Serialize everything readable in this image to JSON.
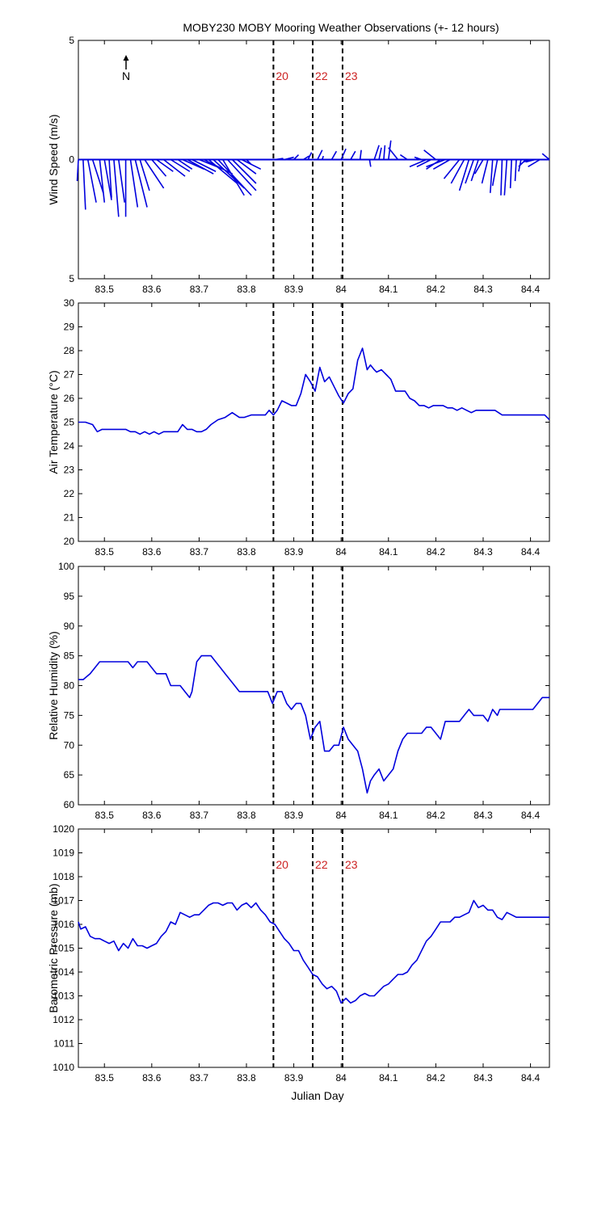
{
  "title": "MOBY230 MOBY Mooring Weather Observations (+- 12 hours)",
  "colors": {
    "series": "#0000dd",
    "marker_label": "#cc2222",
    "axis": "#000000",
    "background": "#ffffff"
  },
  "xlabel": "Julian Day",
  "x_ticks": [
    83.5,
    83.6,
    83.7,
    83.8,
    83.9,
    84,
    84.1,
    84.2,
    84.3,
    84.4
  ],
  "x_tick_labels": [
    "83.5",
    "83.6",
    "83.7",
    "83.8",
    "83.9",
    "84",
    "84.1",
    "84.2",
    "84.3",
    "84.4"
  ],
  "xlim": [
    83.445,
    84.44
  ],
  "markers": [
    {
      "x": 83.857,
      "label": "20"
    },
    {
      "x": 83.94,
      "label": "22"
    },
    {
      "x": 84.003,
      "label": "23"
    }
  ],
  "north_label": "N",
  "chart_data": [
    {
      "type": "line",
      "panel": "wind",
      "ylabel": "Wind Speed (m/s)",
      "ylim": [
        -5,
        5
      ],
      "y_ticks": [
        5,
        0,
        -5
      ],
      "y_tick_labels": [
        "5",
        "0",
        "5"
      ],
      "show_markers": true,
      "grid": false,
      "series": [
        {
          "x": [
            83.445,
            83.455,
            83.465,
            83.475,
            83.49,
            83.5,
            83.51,
            83.52,
            83.53,
            83.545,
            83.555,
            83.565,
            83.575,
            83.585,
            83.6,
            83.61,
            83.625,
            83.64,
            83.655,
            83.665,
            83.675,
            83.685,
            83.7,
            83.71,
            83.72,
            83.73,
            83.74,
            83.75,
            83.76,
            83.77,
            83.78,
            83.79,
            83.8,
            83.86,
            83.88,
            83.9,
            83.92,
            83.93,
            83.95,
            83.96,
            83.98,
            84,
            84.02,
            84.04,
            84.06,
            84.07,
            84.08,
            84.09,
            84.1,
            84.12,
            84.14,
            84.16,
            84.17,
            84.18,
            84.19,
            84.2,
            84.21,
            84.22,
            84.23,
            84.25,
            84.26,
            84.27,
            84.28,
            84.29,
            84.3,
            84.31,
            84.32,
            84.33,
            84.34,
            84.35,
            84.36,
            84.37,
            84.38,
            84.39,
            84.4,
            84.41,
            84.42,
            84.44
          ],
          "u": [
            -0.05,
            0.1,
            0.35,
            0.45,
            0.2,
            0.3,
            0.1,
            0.2,
            0.25,
            0,
            0.3,
            0.5,
            0.4,
            0.8,
            0.6,
            0.7,
            0.9,
            0.8,
            0.6,
            0.9,
            1.1,
            1.0,
            1.0,
            1.2,
            1.2,
            1.3,
            1.4,
            0.9,
            1.2,
            1.0,
            0.8,
            0.8,
            0.2,
            0.35,
            0.4,
            0.2,
            0.25,
            0.15,
            0.2,
            0.05,
            0.2,
            0.2,
            0.2,
            0.05,
            0.05,
            0.2,
            0.1,
            0.05,
            0.1,
            -0.4,
            -0.3,
            0,
            -0.3,
            -0.7,
            -0.6,
            -0.5,
            -0.6,
            -0.8,
            -0.7,
            -0.65,
            -0.55,
            -0.4,
            -0.35,
            -0.3,
            -0.35,
            -0.25,
            -0.1,
            -0.2,
            -0.05,
            -0.1,
            -0.05,
            -0.05,
            -0.1,
            -0.3,
            -0.3,
            -0.4,
            -0.5,
            -0.3
          ],
          "v": [
            -0.9,
            -2.1,
            -1.8,
            -1.4,
            -1.8,
            -1.7,
            -1.6,
            -2.4,
            -1.8,
            -2.4,
            -2.0,
            -2.0,
            -1.3,
            -1.2,
            -0.7,
            -0.5,
            -0.7,
            -0.5,
            -0.4,
            -0.4,
            -0.6,
            -0.5,
            -0.4,
            -0.6,
            -1.0,
            -1.2,
            -1.5,
            -1.5,
            -1.3,
            -1.0,
            -0.6,
            -0.4,
            -0.2,
            0.05,
            0.1,
            0.2,
            0.15,
            0.3,
            0.4,
            0.15,
            0.35,
            0.45,
            0.35,
            0.4,
            -0.3,
            0.6,
            0.5,
            0.6,
            0.8,
            0.5,
            0.2,
            0.1,
            0.1,
            -0.3,
            -0.3,
            0.4,
            -0.4,
            -0.3,
            -0.4,
            -0.8,
            -1.0,
            -1.3,
            -1.0,
            -0.9,
            -0.6,
            -1.0,
            -1.4,
            -1.1,
            -1.5,
            -1.5,
            -1.2,
            -0.9,
            -0.5,
            -0.3,
            -0.1,
            -0.1,
            -0.3,
            0.25
          ]
        }
      ]
    },
    {
      "type": "line",
      "panel": "temperature",
      "ylabel": "Air Temperature (°C)",
      "ylim": [
        20,
        30
      ],
      "y_ticks": [
        20,
        21,
        22,
        23,
        24,
        25,
        26,
        27,
        28,
        29,
        30
      ],
      "y_tick_labels": [
        "20",
        "21",
        "22",
        "23",
        "24",
        "25",
        "26",
        "27",
        "28",
        "29",
        "30"
      ],
      "show_markers": false,
      "grid": false,
      "series": [
        {
          "x": [
            83.445,
            83.46,
            83.475,
            83.485,
            83.495,
            83.51,
            83.53,
            83.545,
            83.555,
            83.565,
            83.575,
            83.585,
            83.595,
            83.605,
            83.615,
            83.625,
            83.635,
            83.645,
            83.655,
            83.665,
            83.675,
            83.685,
            83.695,
            83.705,
            83.715,
            83.725,
            83.74,
            83.755,
            83.77,
            83.785,
            83.795,
            83.81,
            83.825,
            83.84,
            83.848,
            83.857,
            83.865,
            83.875,
            83.885,
            83.895,
            83.905,
            83.915,
            83.925,
            83.935,
            83.945,
            83.955,
            83.965,
            83.975,
            83.985,
            83.995,
            84.005,
            84.015,
            84.025,
            84.035,
            84.045,
            84.055,
            84.062,
            84.07,
            84.075,
            84.085,
            84.095,
            84.105,
            84.115,
            84.125,
            84.135,
            84.145,
            84.155,
            84.165,
            84.175,
            84.185,
            84.195,
            84.205,
            84.215,
            84.225,
            84.235,
            84.245,
            84.255,
            84.265,
            84.275,
            84.285,
            84.295,
            84.305,
            84.315,
            84.325,
            84.34,
            84.355,
            84.37,
            84.385,
            84.4,
            84.415,
            84.43,
            84.44
          ],
          "y": [
            25.0,
            25.0,
            24.9,
            24.6,
            24.7,
            24.7,
            24.7,
            24.7,
            24.6,
            24.6,
            24.5,
            24.6,
            24.5,
            24.6,
            24.5,
            24.6,
            24.6,
            24.6,
            24.6,
            24.9,
            24.7,
            24.7,
            24.6,
            24.6,
            24.7,
            24.9,
            25.1,
            25.2,
            25.4,
            25.2,
            25.2,
            25.3,
            25.3,
            25.3,
            25.5,
            25.3,
            25.5,
            25.9,
            25.8,
            25.7,
            25.7,
            26.2,
            27.0,
            26.7,
            26.3,
            27.3,
            26.7,
            26.9,
            26.5,
            26.1,
            25.8,
            26.2,
            26.4,
            27.6,
            28.1,
            27.2,
            27.4,
            27.2,
            27.1,
            27.2,
            27.0,
            26.8,
            26.3,
            26.3,
            26.3,
            26.0,
            25.9,
            25.7,
            25.7,
            25.6,
            25.7,
            25.7,
            25.7,
            25.6,
            25.6,
            25.5,
            25.6,
            25.5,
            25.4,
            25.5,
            25.5,
            25.5,
            25.5,
            25.5,
            25.3,
            25.3,
            25.3,
            25.3,
            25.3,
            25.3,
            25.3,
            25.1
          ]
        }
      ]
    },
    {
      "type": "line",
      "panel": "humidity",
      "ylabel": "Relative Humidity (%)",
      "ylim": [
        60,
        100
      ],
      "y_ticks": [
        60,
        65,
        70,
        75,
        80,
        85,
        90,
        95,
        100
      ],
      "y_tick_labels": [
        "60",
        "65",
        "70",
        "75",
        "80",
        "85",
        "90",
        "95",
        "100"
      ],
      "show_markers": false,
      "grid": false,
      "series": [
        {
          "x": [
            83.445,
            83.455,
            83.47,
            83.48,
            83.49,
            83.5,
            83.51,
            83.52,
            83.53,
            83.54,
            83.55,
            83.56,
            83.57,
            83.58,
            83.59,
            83.6,
            83.61,
            83.62,
            83.63,
            83.64,
            83.65,
            83.66,
            83.67,
            83.68,
            83.685,
            83.695,
            83.705,
            83.715,
            83.725,
            83.735,
            83.745,
            83.755,
            83.765,
            83.775,
            83.785,
            83.795,
            83.805,
            83.815,
            83.825,
            83.835,
            83.845,
            83.855,
            83.865,
            83.875,
            83.885,
            83.895,
            83.905,
            83.915,
            83.925,
            83.935,
            83.945,
            83.955,
            83.965,
            83.975,
            83.985,
            83.995,
            84.005,
            84.015,
            84.025,
            84.035,
            84.045,
            84.055,
            84.062,
            84.07,
            84.08,
            84.09,
            84.1,
            84.11,
            84.12,
            84.13,
            84.14,
            84.15,
            84.16,
            84.17,
            84.18,
            84.19,
            84.2,
            84.21,
            84.22,
            84.23,
            84.24,
            84.25,
            84.26,
            84.27,
            84.28,
            84.29,
            84.3,
            84.31,
            84.32,
            84.33,
            84.335,
            84.345,
            84.355,
            84.365,
            84.375,
            84.385,
            84.395,
            84.405,
            84.415,
            84.425,
            84.44
          ],
          "y": [
            81,
            81,
            82,
            83,
            84,
            84,
            84,
            84,
            84,
            84,
            84,
            83,
            84,
            84,
            84,
            83,
            82,
            82,
            82,
            80,
            80,
            80,
            79,
            78,
            79,
            84,
            85,
            85,
            85,
            84,
            83,
            82,
            81,
            80,
            79,
            79,
            79,
            79,
            79,
            79,
            79,
            77,
            79,
            79,
            77,
            76,
            77,
            77,
            75,
            71,
            73,
            74,
            69,
            69,
            70,
            70,
            73,
            71,
            70,
            69,
            66,
            62,
            64,
            65,
            66,
            64,
            65,
            66,
            69,
            71,
            72,
            72,
            72,
            72,
            73,
            73,
            72,
            71,
            74,
            74,
            74,
            74,
            75,
            76,
            75,
            75,
            75,
            74,
            76,
            75,
            76,
            76,
            76,
            76,
            76,
            76,
            76,
            76,
            77,
            78,
            78
          ]
        }
      ]
    },
    {
      "type": "line",
      "panel": "pressure",
      "ylabel": "Barometric Pressure (mb)",
      "ylim": [
        1010,
        1020
      ],
      "y_ticks": [
        1010,
        1011,
        1012,
        1013,
        1014,
        1015,
        1016,
        1017,
        1018,
        1019,
        1020
      ],
      "y_tick_labels": [
        "1010",
        "1011",
        "1012",
        "1013",
        "1014",
        "1015",
        "1016",
        "1017",
        "1018",
        "1019",
        "1020"
      ],
      "show_markers": true,
      "grid": false,
      "series": [
        {
          "x": [
            83.445,
            83.45,
            83.46,
            83.47,
            83.48,
            83.49,
            83.5,
            83.51,
            83.52,
            83.53,
            83.54,
            83.55,
            83.56,
            83.57,
            83.58,
            83.59,
            83.6,
            83.61,
            83.62,
            83.63,
            83.64,
            83.65,
            83.66,
            83.67,
            83.68,
            83.69,
            83.7,
            83.71,
            83.72,
            83.73,
            83.74,
            83.75,
            83.76,
            83.77,
            83.78,
            83.79,
            83.8,
            83.81,
            83.82,
            83.83,
            83.84,
            83.85,
            83.86,
            83.87,
            83.88,
            83.89,
            83.9,
            83.91,
            83.92,
            83.93,
            83.94,
            83.95,
            83.96,
            83.97,
            83.98,
            83.99,
            84,
            84.01,
            84.02,
            84.03,
            84.04,
            84.05,
            84.06,
            84.07,
            84.08,
            84.09,
            84.1,
            84.11,
            84.12,
            84.13,
            84.14,
            84.15,
            84.16,
            84.17,
            84.18,
            84.19,
            84.2,
            84.21,
            84.22,
            84.23,
            84.24,
            84.25,
            84.26,
            84.27,
            84.28,
            84.29,
            84.3,
            84.31,
            84.32,
            84.33,
            84.34,
            84.35,
            84.36,
            84.37,
            84.38,
            84.39,
            84.4,
            84.41,
            84.42,
            84.43,
            84.44
          ],
          "y": [
            1016.1,
            1015.8,
            1015.9,
            1015.5,
            1015.4,
            1015.4,
            1015.3,
            1015.2,
            1015.3,
            1014.9,
            1015.2,
            1015.0,
            1015.4,
            1015.1,
            1015.1,
            1015.0,
            1015.1,
            1015.2,
            1015.5,
            1015.7,
            1016.1,
            1016.0,
            1016.5,
            1016.4,
            1016.3,
            1016.4,
            1016.4,
            1016.6,
            1016.8,
            1016.9,
            1016.9,
            1016.8,
            1016.9,
            1016.9,
            1016.6,
            1016.8,
            1016.9,
            1016.7,
            1016.9,
            1016.6,
            1016.4,
            1016.1,
            1016.0,
            1015.7,
            1015.4,
            1015.2,
            1014.9,
            1014.9,
            1014.5,
            1014.2,
            1013.9,
            1013.8,
            1013.5,
            1013.3,
            1013.4,
            1013.2,
            1012.7,
            1012.9,
            1012.7,
            1012.8,
            1013.0,
            1013.1,
            1013.0,
            1013.0,
            1013.2,
            1013.4,
            1013.5,
            1013.7,
            1013.9,
            1013.9,
            1014.0,
            1014.3,
            1014.5,
            1014.9,
            1015.3,
            1015.5,
            1015.8,
            1016.1,
            1016.1,
            1016.1,
            1016.3,
            1016.3,
            1016.4,
            1016.5,
            1017.0,
            1016.7,
            1016.8,
            1016.6,
            1016.6,
            1016.3,
            1016.2,
            1016.5,
            1016.4,
            1016.3,
            1016.3,
            1016.3,
            1016.3,
            1016.3,
            1016.3,
            1016.3,
            1016.3
          ]
        }
      ]
    }
  ]
}
